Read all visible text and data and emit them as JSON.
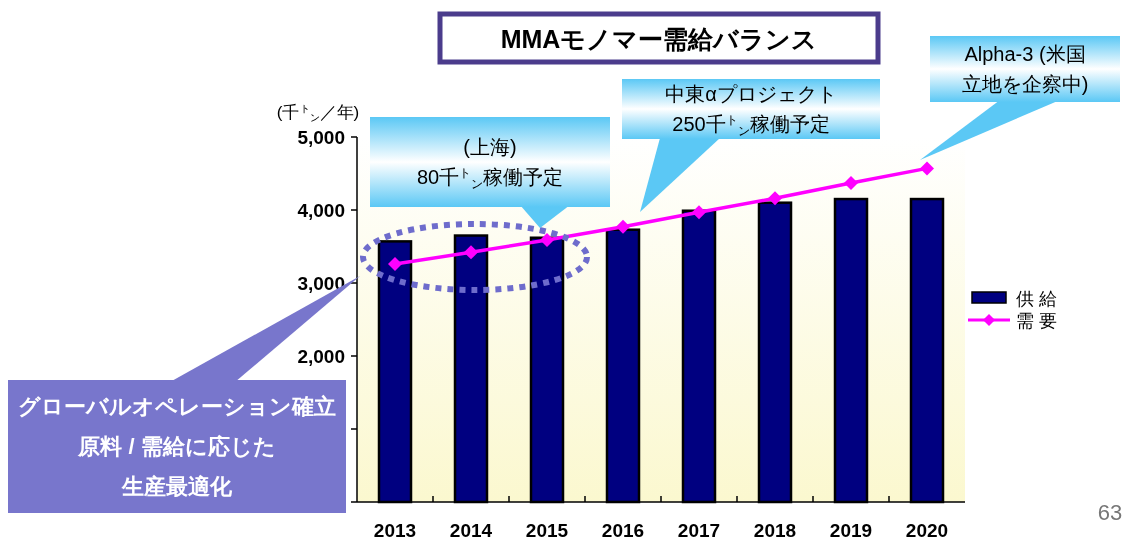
{
  "chart_data": {
    "type": "bar",
    "title": "MMAモノマー需給バランス",
    "ylabel": "(千$^{ト}$$_{ン}$／年)",
    "categories": [
      "2013",
      "2014",
      "2015",
      "2016",
      "2017",
      "2018",
      "2019",
      "2020"
    ],
    "series": [
      {
        "name": "供 給",
        "color": "#000080",
        "values": [
          3570,
          3650,
          3620,
          3730,
          3990,
          4100,
          4150,
          4150
        ]
      },
      {
        "name": "需 要",
        "type": "line",
        "color": "#ff00ff",
        "marker": "diamond",
        "values": [
          3260,
          3420,
          3590,
          3770,
          3970,
          4160,
          4370,
          4570
        ]
      }
    ],
    "ylim": [
      0,
      5000
    ],
    "yticks": [
      {
        "value": 0,
        "label": null
      },
      {
        "value": 1000,
        "label": null
      },
      {
        "value": 2000,
        "label": "2,000"
      },
      {
        "value": 3000,
        "label": "3,000"
      },
      {
        "value": 4000,
        "label": "4,000"
      },
      {
        "value": 5000,
        "label": "5,000"
      }
    ],
    "legend": "right",
    "annotations": [
      "(上海)",
      "80千$^{ト}$$_{ン}$稼働予定",
      "中東αプロジェクト",
      "250千$^{ト}$$_{ン}$稼働予定",
      "Alpha-3 (米国",
      "立地を企察中)",
      "グローバルオペレーション確立",
      "原料 / 需給に応じた",
      "生産最適化",
      "63"
    ]
  }
}
